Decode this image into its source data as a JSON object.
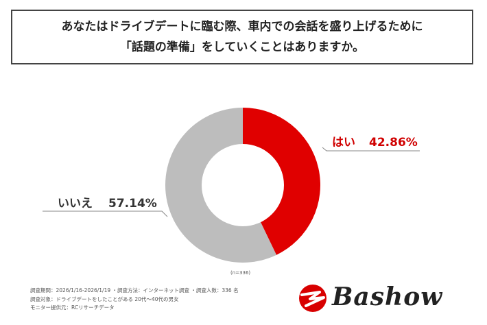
{
  "title": {
    "line1": "あなたはドライブデートに臨む際、車内での会話を盛り上げるために",
    "line2": "「話題の準備」をしていくことはありますか。"
  },
  "chart_data": {
    "type": "pie",
    "donut": true,
    "slices": [
      {
        "name": "はい",
        "value": 42.86,
        "label": "42.86%",
        "color": "#e00000"
      },
      {
        "name": "いいえ",
        "value": 57.14,
        "label": "57.14%",
        "color": "#bdbdbd"
      }
    ],
    "sample_note": "(n=336)"
  },
  "notes": [
    "調査期間：2026/1/16-2026/1/19 ・調査方法：インターネット調査 ・調査人数：336 名",
    "調査対象：ドライブデートをしたことがある 20代〜40代の男女",
    "モニター提供元：RCリサーチデータ"
  ],
  "logo": {
    "text": "Bashow",
    "colors": {
      "mark": "#d80000",
      "text": "#222222"
    }
  }
}
